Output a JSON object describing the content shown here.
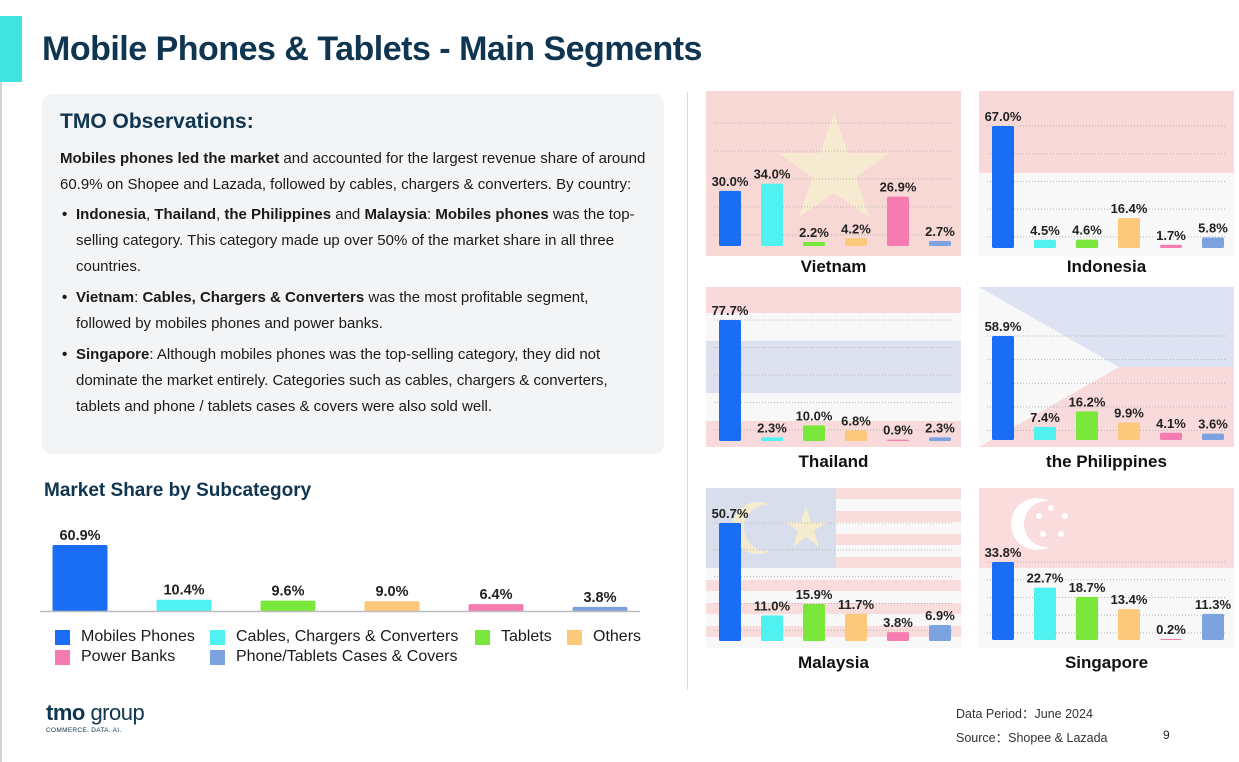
{
  "page": {
    "title": "Mobile Phones & Tablets - Main Segments",
    "page_number": "9"
  },
  "observations": {
    "heading": "TMO Observations:",
    "intro_bold": "Mobiles phones led the market",
    "intro_rest": " and accounted for the largest revenue share of around 60.9% on Shopee and Lazada, followed by cables, chargers & converters. By country:",
    "bullet1": {
      "c1": "Indonesia",
      "s1": ", ",
      "c2": "Thailand",
      "s2": ", ",
      "c3": "the Philippines",
      "s3": " and ",
      "c4": "Malaysia",
      "s4": ": ",
      "cat": "Mobiles phones",
      "rest": " was the top-selling category. This category made up over 50% of the market share in all three countries."
    },
    "bullet2": {
      "country": "Vietnam",
      "sep": ": ",
      "cat": "Cables, Chargers & Converters",
      "rest": " was the most profitable segment, followed by mobiles phones and power banks."
    },
    "bullet3": {
      "country": "Singapore",
      "rest": ": Although mobiles phones was the top-selling category, they did not dominate the market entirely. Categories such as cables, chargers & converters, tablets and phone / tablets cases & covers were also sold well."
    }
  },
  "colors": {
    "mobiles": "#1a6ef5",
    "cables": "#4ff2f0",
    "tablets": "#7ae83a",
    "others": "#fcc97a",
    "power_banks": "#f57bb0",
    "cases": "#7da2e0",
    "title": "#0f3550",
    "accent": "#3fe3e0"
  },
  "chart_data": [
    {
      "type": "bar",
      "title": "Market Share by Subcategory",
      "categories": [
        "Mobiles Phones",
        "Cables, Chargers & Converters",
        "Tablets",
        "Others",
        "Power Banks",
        "Phone/Tablets Cases & Covers"
      ],
      "values": [
        60.9,
        10.4,
        9.6,
        9.0,
        6.4,
        3.8
      ],
      "value_labels": [
        "60.9%",
        "10.4%",
        "9.6%",
        "9.0%",
        "6.4%",
        "3.8%"
      ],
      "unit": "%",
      "legend_position": "bottom"
    },
    {
      "type": "bar",
      "title": "Vietnam",
      "categories": [
        "Mobiles Phones",
        "Cables, Chargers & Converters",
        "Tablets",
        "Others",
        "Power Banks",
        "Phone/Tablets Cases & Covers"
      ],
      "values": [
        30.0,
        34.0,
        2.2,
        4.2,
        26.9,
        2.7
      ],
      "value_labels": [
        "30.0%",
        "34.0%",
        "2.2%",
        "4.2%",
        "26.9%",
        "2.7%"
      ],
      "unit": "%"
    },
    {
      "type": "bar",
      "title": "Indonesia",
      "categories": [
        "Mobiles Phones",
        "Cables, Chargers & Converters",
        "Tablets",
        "Others",
        "Power Banks",
        "Phone/Tablets Cases & Covers"
      ],
      "values": [
        67.0,
        4.5,
        4.6,
        16.4,
        1.7,
        5.8
      ],
      "value_labels": [
        "67.0%",
        "4.5%",
        "4.6%",
        "16.4%",
        "1.7%",
        "5.8%"
      ],
      "unit": "%"
    },
    {
      "type": "bar",
      "title": "Thailand",
      "categories": [
        "Mobiles Phones",
        "Cables, Chargers & Converters",
        "Tablets",
        "Others",
        "Power Banks",
        "Phone/Tablets Cases & Covers"
      ],
      "values": [
        77.7,
        2.3,
        10.0,
        6.8,
        0.9,
        2.3
      ],
      "value_labels": [
        "77.7%",
        "2.3%",
        "10.0%",
        "6.8%",
        "0.9%",
        "2.3%"
      ],
      "unit": "%"
    },
    {
      "type": "bar",
      "title": "the Philippines",
      "categories": [
        "Mobiles Phones",
        "Cables, Chargers & Converters",
        "Tablets",
        "Others",
        "Power Banks",
        "Phone/Tablets Cases & Covers"
      ],
      "values": [
        58.9,
        7.4,
        16.2,
        9.9,
        4.1,
        3.6
      ],
      "value_labels": [
        "58.9%",
        "7.4%",
        "16.2%",
        "9.9%",
        "4.1%",
        "3.6%"
      ],
      "unit": "%"
    },
    {
      "type": "bar",
      "title": "Malaysia",
      "categories": [
        "Mobiles Phones",
        "Cables, Chargers & Converters",
        "Tablets",
        "Others",
        "Power Banks",
        "Phone/Tablets Cases & Covers"
      ],
      "values": [
        50.7,
        11.0,
        15.9,
        11.7,
        3.8,
        6.9
      ],
      "value_labels": [
        "50.7%",
        "11.0%",
        "15.9%",
        "11.7%",
        "3.8%",
        "6.9%"
      ],
      "unit": "%"
    },
    {
      "type": "bar",
      "title": "Singapore",
      "categories": [
        "Mobiles Phones",
        "Cables, Chargers & Converters",
        "Tablets",
        "Others",
        "Power Banks",
        "Phone/Tablets Cases & Covers"
      ],
      "values": [
        33.8,
        22.7,
        18.7,
        13.4,
        0.2,
        11.3
      ],
      "value_labels": [
        "33.8%",
        "22.7%",
        "18.7%",
        "13.4%",
        "0.2%",
        "11.3%"
      ],
      "unit": "%"
    }
  ],
  "legend": {
    "mobiles": "Mobiles Phones",
    "cables": "Cables, Chargers & Converters",
    "tablets": "Tablets",
    "others": "Others",
    "power_banks": "Power Banks",
    "cases": "Phone/Tablets Cases & Covers"
  },
  "footer": {
    "logo_main_bold": "tmo",
    "logo_main_light": " group",
    "logo_sub": "COMMERCE. DATA. AI.",
    "data_period": "Data Period：June 2024",
    "source": "Source：Shopee & Lazada"
  }
}
